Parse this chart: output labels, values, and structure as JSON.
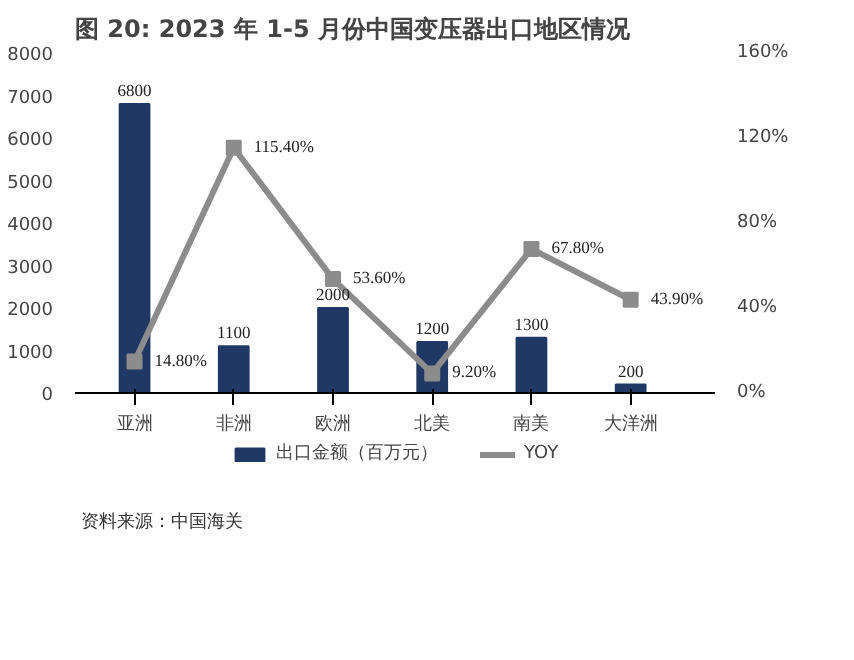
{
  "chart_data": {
    "type": "bar",
    "title": "图 20: 2023 年 1-5 月份中国变压器出口地区情况",
    "categories": [
      "亚洲",
      "非洲",
      "欧洲",
      "北美",
      "南美",
      "大洋洲"
    ],
    "series": [
      {
        "name": "出口金额（百万元）",
        "color": "#1f3864",
        "values": [
          6800,
          1100,
          2000,
          1200,
          1300,
          200
        ],
        "value_labels": [
          "6800",
          "1100",
          "2000",
          "1200",
          "1300",
          "200"
        ]
      },
      {
        "name": "YOY",
        "type": "line",
        "axis": "y2",
        "color": "#8c8c8c",
        "marker": "square",
        "values": [
          14.8,
          115.4,
          53.6,
          9.2,
          67.8,
          43.9
        ],
        "value_labels": [
          "14.80%",
          "115.40%",
          "53.60%",
          "9.20%",
          "67.80%",
          "43.90%"
        ]
      }
    ],
    "ylim": [
      0,
      8000
    ],
    "yticks": [
      0,
      1000,
      2000,
      3000,
      4000,
      5000,
      6000,
      7000,
      8000
    ],
    "y2lim": [
      0,
      160
    ],
    "y2ticks": [
      {
        "value": 0,
        "label": "0%"
      },
      {
        "value": 40,
        "label": "40%"
      },
      {
        "value": 80,
        "label": "80%"
      },
      {
        "value": 120,
        "label": "120%"
      },
      {
        "value": 160,
        "label": "160%"
      }
    ],
    "grid": false,
    "legend": "bottom",
    "annotations": [
      "资料来源：中国海关"
    ]
  }
}
